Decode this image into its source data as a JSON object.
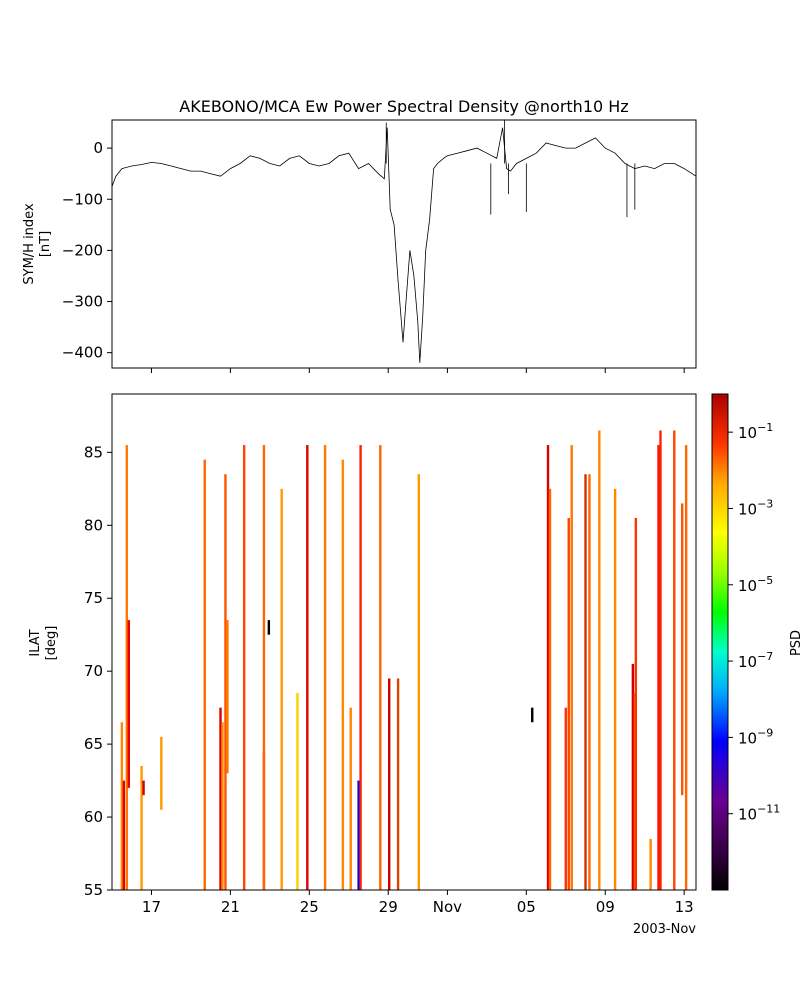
{
  "chart_data": [
    {
      "type": "line",
      "title": "AKEBONO/MCA Ew Power Spectral Density @north10 Hz",
      "ylabel_line1": "SYM/H index",
      "ylabel_line2": "[nT]",
      "ylim": [
        -430,
        55
      ],
      "yticks": [
        0,
        -100,
        -200,
        -300,
        -400
      ],
      "ytick_labels": [
        "0",
        "−100",
        "−200",
        "−300",
        "−400"
      ],
      "xlim": [
        0,
        29.6
      ],
      "line_color": "#000000",
      "series": [
        {
          "x": [
            0.0,
            0.2,
            0.5,
            1.0,
            1.5,
            2.0,
            2.5,
            3.0,
            3.5,
            4.0,
            4.5,
            5.0,
            5.5,
            6.0,
            6.5,
            7.0,
            7.5,
            8.0,
            8.5,
            9.0,
            9.5,
            10.0,
            10.5,
            11.0,
            11.5,
            12.0,
            12.5,
            13.0,
            13.5,
            13.8,
            13.95,
            14.1,
            14.3,
            14.5,
            14.65,
            14.75,
            14.9,
            15.1,
            15.3,
            15.5,
            15.6,
            15.75,
            15.9,
            16.1,
            16.3,
            16.5,
            16.8,
            17.0,
            17.5,
            18.0,
            18.5,
            19.0,
            19.5,
            19.8,
            20.0,
            20.2,
            20.5,
            21.0,
            21.5,
            22.0,
            22.5,
            23.0,
            23.5,
            24.0,
            24.5,
            25.0,
            25.5,
            26.0,
            26.5,
            27.0,
            27.5,
            28.0,
            28.5,
            29.0,
            29.6
          ],
          "y": [
            -75,
            -55,
            -40,
            -35,
            -32,
            -28,
            -30,
            -35,
            -40,
            -45,
            -45,
            -50,
            -55,
            -40,
            -30,
            -15,
            -20,
            -30,
            -35,
            -20,
            -15,
            -30,
            -35,
            -30,
            -15,
            -10,
            -40,
            -30,
            -50,
            -60,
            40,
            -120,
            -150,
            -260,
            -330,
            -380,
            -300,
            -200,
            -250,
            -340,
            -420,
            -330,
            -200,
            -140,
            -40,
            -30,
            -20,
            -15,
            -10,
            -5,
            0,
            -10,
            -20,
            40,
            -40,
            -45,
            -30,
            -20,
            -10,
            10,
            5,
            0,
            0,
            10,
            20,
            0,
            -10,
            -30,
            -40,
            -35,
            -40,
            -30,
            -30,
            -40,
            -55
          ]
        }
      ],
      "spikes": [
        {
          "x": 13.9,
          "y": 50
        },
        {
          "x": 19.9,
          "y": 55
        },
        {
          "x": 19.2,
          "y": -130
        },
        {
          "x": 20.1,
          "y": -90
        },
        {
          "x": 21.0,
          "y": -125
        },
        {
          "x": 26.1,
          "y": -135
        },
        {
          "x": 26.5,
          "y": -120
        }
      ]
    },
    {
      "type": "heatmap",
      "ylabel_line1": "ILAT",
      "ylabel_line2": "[deg]",
      "ylim": [
        55,
        89
      ],
      "yticks": [
        55,
        60,
        65,
        70,
        75,
        80,
        85
      ],
      "ytick_labels": [
        "55",
        "60",
        "65",
        "70",
        "75",
        "80",
        "85"
      ],
      "xlim": [
        0,
        29.6
      ],
      "xticks": [
        2,
        6,
        10,
        14,
        17,
        21,
        25,
        29
      ],
      "xtick_labels": [
        "17",
        "21",
        "25",
        "29",
        "Nov",
        "05",
        "09",
        "13"
      ],
      "xlabel_note": "2003-Nov",
      "colorbar": {
        "label": "PSD",
        "scale": "log",
        "range": [
          1e-13,
          1
        ],
        "ticks": [
          {
            "exp": -1,
            "base": "10",
            "sup": "−1"
          },
          {
            "exp": -3,
            "base": "10",
            "sup": "−3"
          },
          {
            "exp": -5,
            "base": "10",
            "sup": "−5"
          },
          {
            "exp": -7,
            "base": "10",
            "sup": "−7"
          },
          {
            "exp": -9,
            "base": "10",
            "sup": "−9"
          },
          {
            "exp": -11,
            "base": "10",
            "sup": "−11"
          }
        ]
      },
      "strips": [
        {
          "x": 0.5,
          "y0": 55,
          "y1": 66.5,
          "color": "#ff8800"
        },
        {
          "x": 0.6,
          "y0": 55,
          "y1": 62.5,
          "color": "#e00000"
        },
        {
          "x": 0.75,
          "y0": 55,
          "y1": 85.5,
          "color": "#ff7700"
        },
        {
          "x": 0.85,
          "y0": 62,
          "y1": 73.5,
          "color": "#e80000"
        },
        {
          "x": 1.5,
          "y0": 55,
          "y1": 63.5,
          "color": "#ff9900"
        },
        {
          "x": 1.6,
          "y0": 61.5,
          "y1": 62.5,
          "color": "#cc0000"
        },
        {
          "x": 2.5,
          "y0": 60.5,
          "y1": 65.5,
          "color": "#ff9900"
        },
        {
          "x": 4.7,
          "y0": 55,
          "y1": 84.5,
          "color": "#ff6600"
        },
        {
          "x": 5.5,
          "y0": 55,
          "y1": 67.5,
          "color": "#dd0000"
        },
        {
          "x": 5.6,
          "y0": 55,
          "y1": 66.5,
          "color": "#ff8800"
        },
        {
          "x": 5.75,
          "y0": 55,
          "y1": 83.5,
          "color": "#ff5500"
        },
        {
          "x": 5.85,
          "y0": 63,
          "y1": 73.5,
          "color": "#ff7700"
        },
        {
          "x": 6.7,
          "y0": 55,
          "y1": 85.5,
          "color": "#ff4400"
        },
        {
          "x": 7.7,
          "y0": 55,
          "y1": 64.5,
          "color": "#cc0000"
        },
        {
          "x": 7.95,
          "y0": 72.5,
          "y1": 73.5,
          "color": "#000000"
        },
        {
          "x": 7.7,
          "y0": 55,
          "y1": 85.5,
          "color": "#ff6600"
        },
        {
          "x": 8.6,
          "y0": 55,
          "y1": 82.5,
          "color": "#ff9900"
        },
        {
          "x": 9.4,
          "y0": 55,
          "y1": 68.5,
          "color": "#ffcc00"
        },
        {
          "x": 9.9,
          "y0": 55,
          "y1": 85.5,
          "color": "#dd0000"
        },
        {
          "x": 10.8,
          "y0": 55,
          "y1": 85.5,
          "color": "#ff7700"
        },
        {
          "x": 11.7,
          "y0": 55,
          "y1": 84.5,
          "color": "#ff8800"
        },
        {
          "x": 12.1,
          "y0": 55,
          "y1": 67.5,
          "color": "#ff8800"
        },
        {
          "x": 12.5,
          "y0": 55,
          "y1": 62.5,
          "color": "#0000ee"
        },
        {
          "x": 12.6,
          "y0": 55,
          "y1": 85.5,
          "color": "#ff2200"
        },
        {
          "x": 13.6,
          "y0": 55,
          "y1": 85.5,
          "color": "#ff6600"
        },
        {
          "x": 14.05,
          "y0": 55,
          "y1": 69.5,
          "color": "#cc0000"
        },
        {
          "x": 14.5,
          "y0": 55,
          "y1": 69.5,
          "color": "#dd4400"
        },
        {
          "x": 15.55,
          "y0": 55,
          "y1": 83.5,
          "color": "#ff9900"
        },
        {
          "x": 21.3,
          "y0": 66.5,
          "y1": 67.5,
          "color": "#000000"
        },
        {
          "x": 22.1,
          "y0": 55,
          "y1": 85.5,
          "color": "#dd0000"
        },
        {
          "x": 22.2,
          "y0": 55,
          "y1": 82.5,
          "color": "#ff6600"
        },
        {
          "x": 23.0,
          "y0": 55,
          "y1": 67.5,
          "color": "#ff3300"
        },
        {
          "x": 23.15,
          "y0": 55,
          "y1": 80.5,
          "color": "#ff4400"
        },
        {
          "x": 23.3,
          "y0": 55,
          "y1": 85.5,
          "color": "#ff7700"
        },
        {
          "x": 24.0,
          "y0": 55,
          "y1": 83.5,
          "color": "#cc3300"
        },
        {
          "x": 24.2,
          "y0": 55,
          "y1": 83.5,
          "color": "#ff6600"
        },
        {
          "x": 24.7,
          "y0": 55,
          "y1": 86.5,
          "color": "#ff8800"
        },
        {
          "x": 25.5,
          "y0": 55,
          "y1": 82.5,
          "color": "#ff8800"
        },
        {
          "x": 26.4,
          "y0": 55,
          "y1": 70.5,
          "color": "#cc0000"
        },
        {
          "x": 26.5,
          "y0": 55,
          "y1": 68.5,
          "color": "#ff5500"
        },
        {
          "x": 26.55,
          "y0": 55,
          "y1": 80.5,
          "color": "#ff3300"
        },
        {
          "x": 27.3,
          "y0": 55,
          "y1": 58.5,
          "color": "#ff8800"
        },
        {
          "x": 27.7,
          "y0": 55,
          "y1": 85.5,
          "color": "#ff1100"
        },
        {
          "x": 27.8,
          "y0": 55,
          "y1": 86.5,
          "color": "#ff2200"
        },
        {
          "x": 28.5,
          "y0": 55,
          "y1": 86.5,
          "color": "#ff4400"
        },
        {
          "x": 28.9,
          "y0": 61.5,
          "y1": 81.5,
          "color": "#ff5500"
        },
        {
          "x": 29.1,
          "y0": 55,
          "y1": 85.5,
          "color": "#ff6600"
        }
      ]
    }
  ]
}
